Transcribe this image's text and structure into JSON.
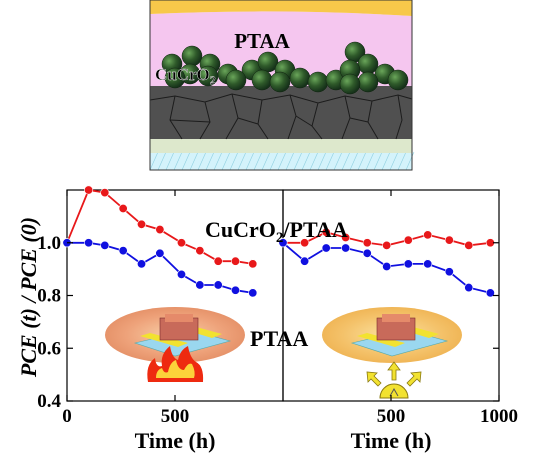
{
  "schematic": {
    "layer_label": "PTAA",
    "particle_label_base": "CuCrO",
    "particle_label_sub": "2",
    "colors": {
      "top_electrode": "#f7c84a",
      "ptaa_layer": "#f5c6ef",
      "particles": "#2f5a2a",
      "perovskite": "#505050",
      "grain_lines": "#1c1c1c",
      "etl": "#dde8cc",
      "glass": "#d4f3fb"
    }
  },
  "chart_data": [
    {
      "type": "line",
      "panel": "thermal",
      "icon": "flame-icon",
      "ylabel": {
        "prefix": "PCE (",
        "mid": "t",
        "suffix": ") / PCE (0)"
      },
      "xlabel": "Time (h)",
      "xlim": [
        0,
        1000
      ],
      "ylim": [
        0.4,
        1.2
      ],
      "x_ticks": [
        "0",
        "500"
      ],
      "x_tick_values": [
        0,
        500
      ],
      "y_ticks": [
        "0.4",
        "0.6",
        "0.8",
        "1.0"
      ],
      "y_tick_values": [
        0.4,
        0.6,
        0.8,
        1.0
      ],
      "series": [
        {
          "name": "CuCrO2/PTAA",
          "label_base": "CuCrO",
          "label_sub": "2",
          "label_rest": "/PTAA",
          "color": "#e8181a",
          "x": [
            0,
            100,
            175,
            260,
            345,
            430,
            530,
            615,
            700,
            780,
            860
          ],
          "y": [
            1.0,
            1.2,
            1.19,
            1.13,
            1.07,
            1.05,
            1.0,
            0.97,
            0.93,
            0.93,
            0.92
          ]
        },
        {
          "name": "PTAA",
          "color": "#1010e0",
          "x": [
            0,
            100,
            175,
            260,
            345,
            430,
            530,
            615,
            700,
            780,
            860
          ],
          "y": [
            1.0,
            1.0,
            0.99,
            0.97,
            0.92,
            0.96,
            0.88,
            0.84,
            0.84,
            0.82,
            0.81
          ]
        }
      ]
    },
    {
      "type": "line",
      "panel": "light-soaking",
      "icon": "lamp-icon",
      "xlabel": "Time (h)",
      "xlim": [
        0,
        1000
      ],
      "ylim": [
        0.4,
        1.2
      ],
      "x_ticks": [
        "500",
        "1000"
      ],
      "x_tick_values": [
        500,
        1000
      ],
      "series": [
        {
          "name": "CuCrO2/PTAA",
          "color": "#e8181a",
          "x": [
            0,
            100,
            200,
            290,
            390,
            480,
            580,
            670,
            770,
            860,
            960
          ],
          "y": [
            1.0,
            1.0,
            1.04,
            1.02,
            1.0,
            0.99,
            1.01,
            1.03,
            1.01,
            0.99,
            1.0
          ]
        },
        {
          "name": "PTAA",
          "label": "PTAA",
          "color": "#1010e0",
          "x": [
            0,
            100,
            200,
            290,
            390,
            480,
            580,
            670,
            770,
            860,
            960
          ],
          "y": [
            1.0,
            0.93,
            0.98,
            0.98,
            0.96,
            0.91,
            0.92,
            0.92,
            0.89,
            0.83,
            0.81
          ]
        }
      ]
    }
  ]
}
